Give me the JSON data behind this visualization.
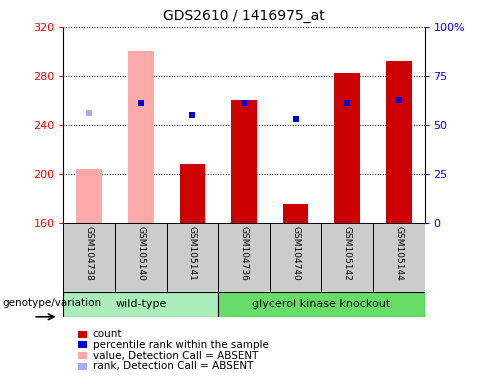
{
  "title": "GDS2610 / 1416975_at",
  "samples": [
    "GSM104738",
    "GSM105140",
    "GSM105141",
    "GSM104736",
    "GSM104740",
    "GSM105142",
    "GSM105144"
  ],
  "count_values": [
    null,
    null,
    208,
    260,
    175,
    282,
    292
  ],
  "count_absent": [
    204,
    300,
    null,
    null,
    null,
    null,
    null
  ],
  "percentile_rank": [
    null,
    258,
    248,
    258,
    245,
    258,
    260
  ],
  "percentile_rank_absent": [
    250,
    null,
    null,
    null,
    null,
    null,
    null
  ],
  "ylim": [
    160,
    320
  ],
  "yticks": [
    160,
    200,
    240,
    280,
    320
  ],
  "y2lim": [
    0,
    100
  ],
  "y2ticks": [
    0,
    25,
    50,
    75,
    100
  ],
  "bar_width": 0.5,
  "count_color": "#cc0000",
  "absent_bar_color": "#ffaaaa",
  "percentile_color": "#0000cc",
  "absent_rank_color": "#aaaaee",
  "wt_color": "#aaeebb",
  "gk_color": "#66dd66",
  "label_bg": "#cccccc",
  "legend_items": [
    {
      "label": "count",
      "color": "#cc0000"
    },
    {
      "label": "percentile rank within the sample",
      "color": "#0000cc"
    },
    {
      "label": "value, Detection Call = ABSENT",
      "color": "#ffaaaa"
    },
    {
      "label": "rank, Detection Call = ABSENT",
      "color": "#aaaaee"
    }
  ],
  "wt_samples": 3,
  "gk_samples": 4
}
